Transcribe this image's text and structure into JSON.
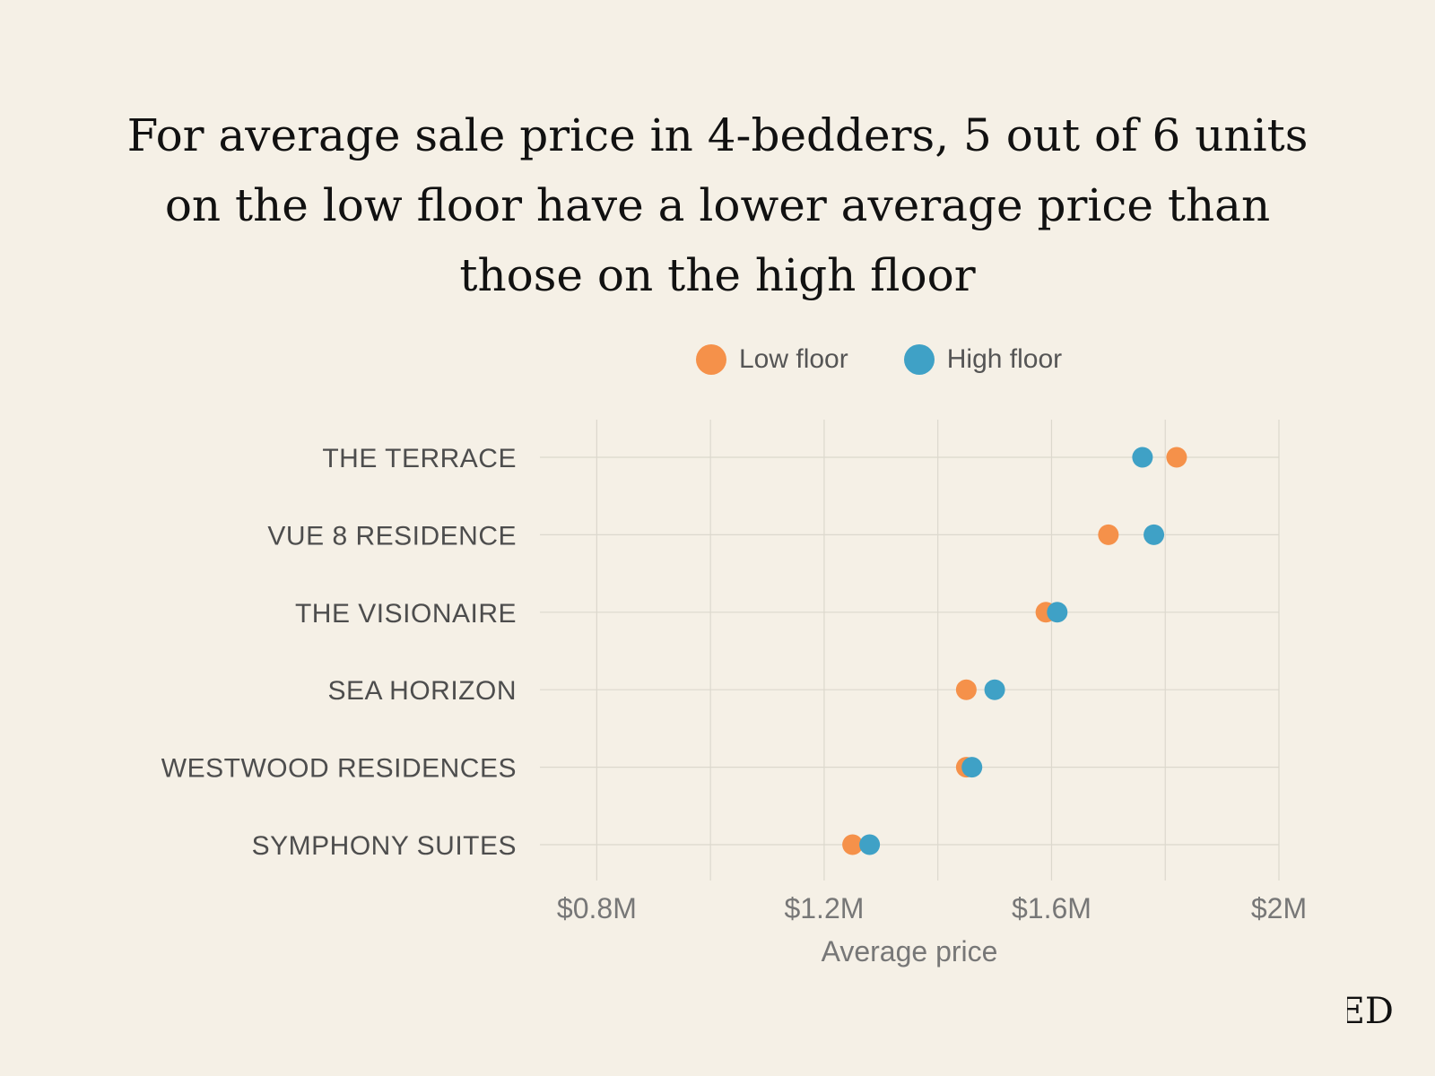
{
  "title": "For average sale price in 4-bedders, 5 out of 6 units on the low floor have a lower average price than those on the high floor",
  "brand_mark": "ED",
  "colors": {
    "background": "#f5f0e6",
    "low_floor": "#f5914a",
    "high_floor": "#3fa1c6",
    "grid": "#dcd8cd"
  },
  "chart_data": {
    "type": "dot",
    "title": "For average sale price in 4-bedders, 5 out of 6 units on the low floor have a lower average price than those on the high floor",
    "xlabel": "Average price",
    "ylabel": "",
    "xlim": [
      0.7,
      2.0
    ],
    "x_ticks": [
      0.8,
      1.2,
      1.6,
      2.0
    ],
    "x_tick_labels": [
      "$0.8M",
      "$1.2M",
      "$1.6M",
      "$2M"
    ],
    "grid": true,
    "legend_position": "top",
    "categories": [
      "THE TERRACE",
      "VUE 8 RESIDENCE",
      "THE VISIONAIRE",
      "SEA HORIZON",
      "WESTWOOD RESIDENCES",
      "SYMPHONY SUITES"
    ],
    "series": [
      {
        "name": "Low floor",
        "color": "#f5914a",
        "values": [
          1.82,
          1.7,
          1.59,
          1.45,
          1.45,
          1.25
        ]
      },
      {
        "name": "High floor",
        "color": "#3fa1c6",
        "values": [
          1.76,
          1.78,
          1.61,
          1.5,
          1.46,
          1.28
        ]
      }
    ]
  }
}
